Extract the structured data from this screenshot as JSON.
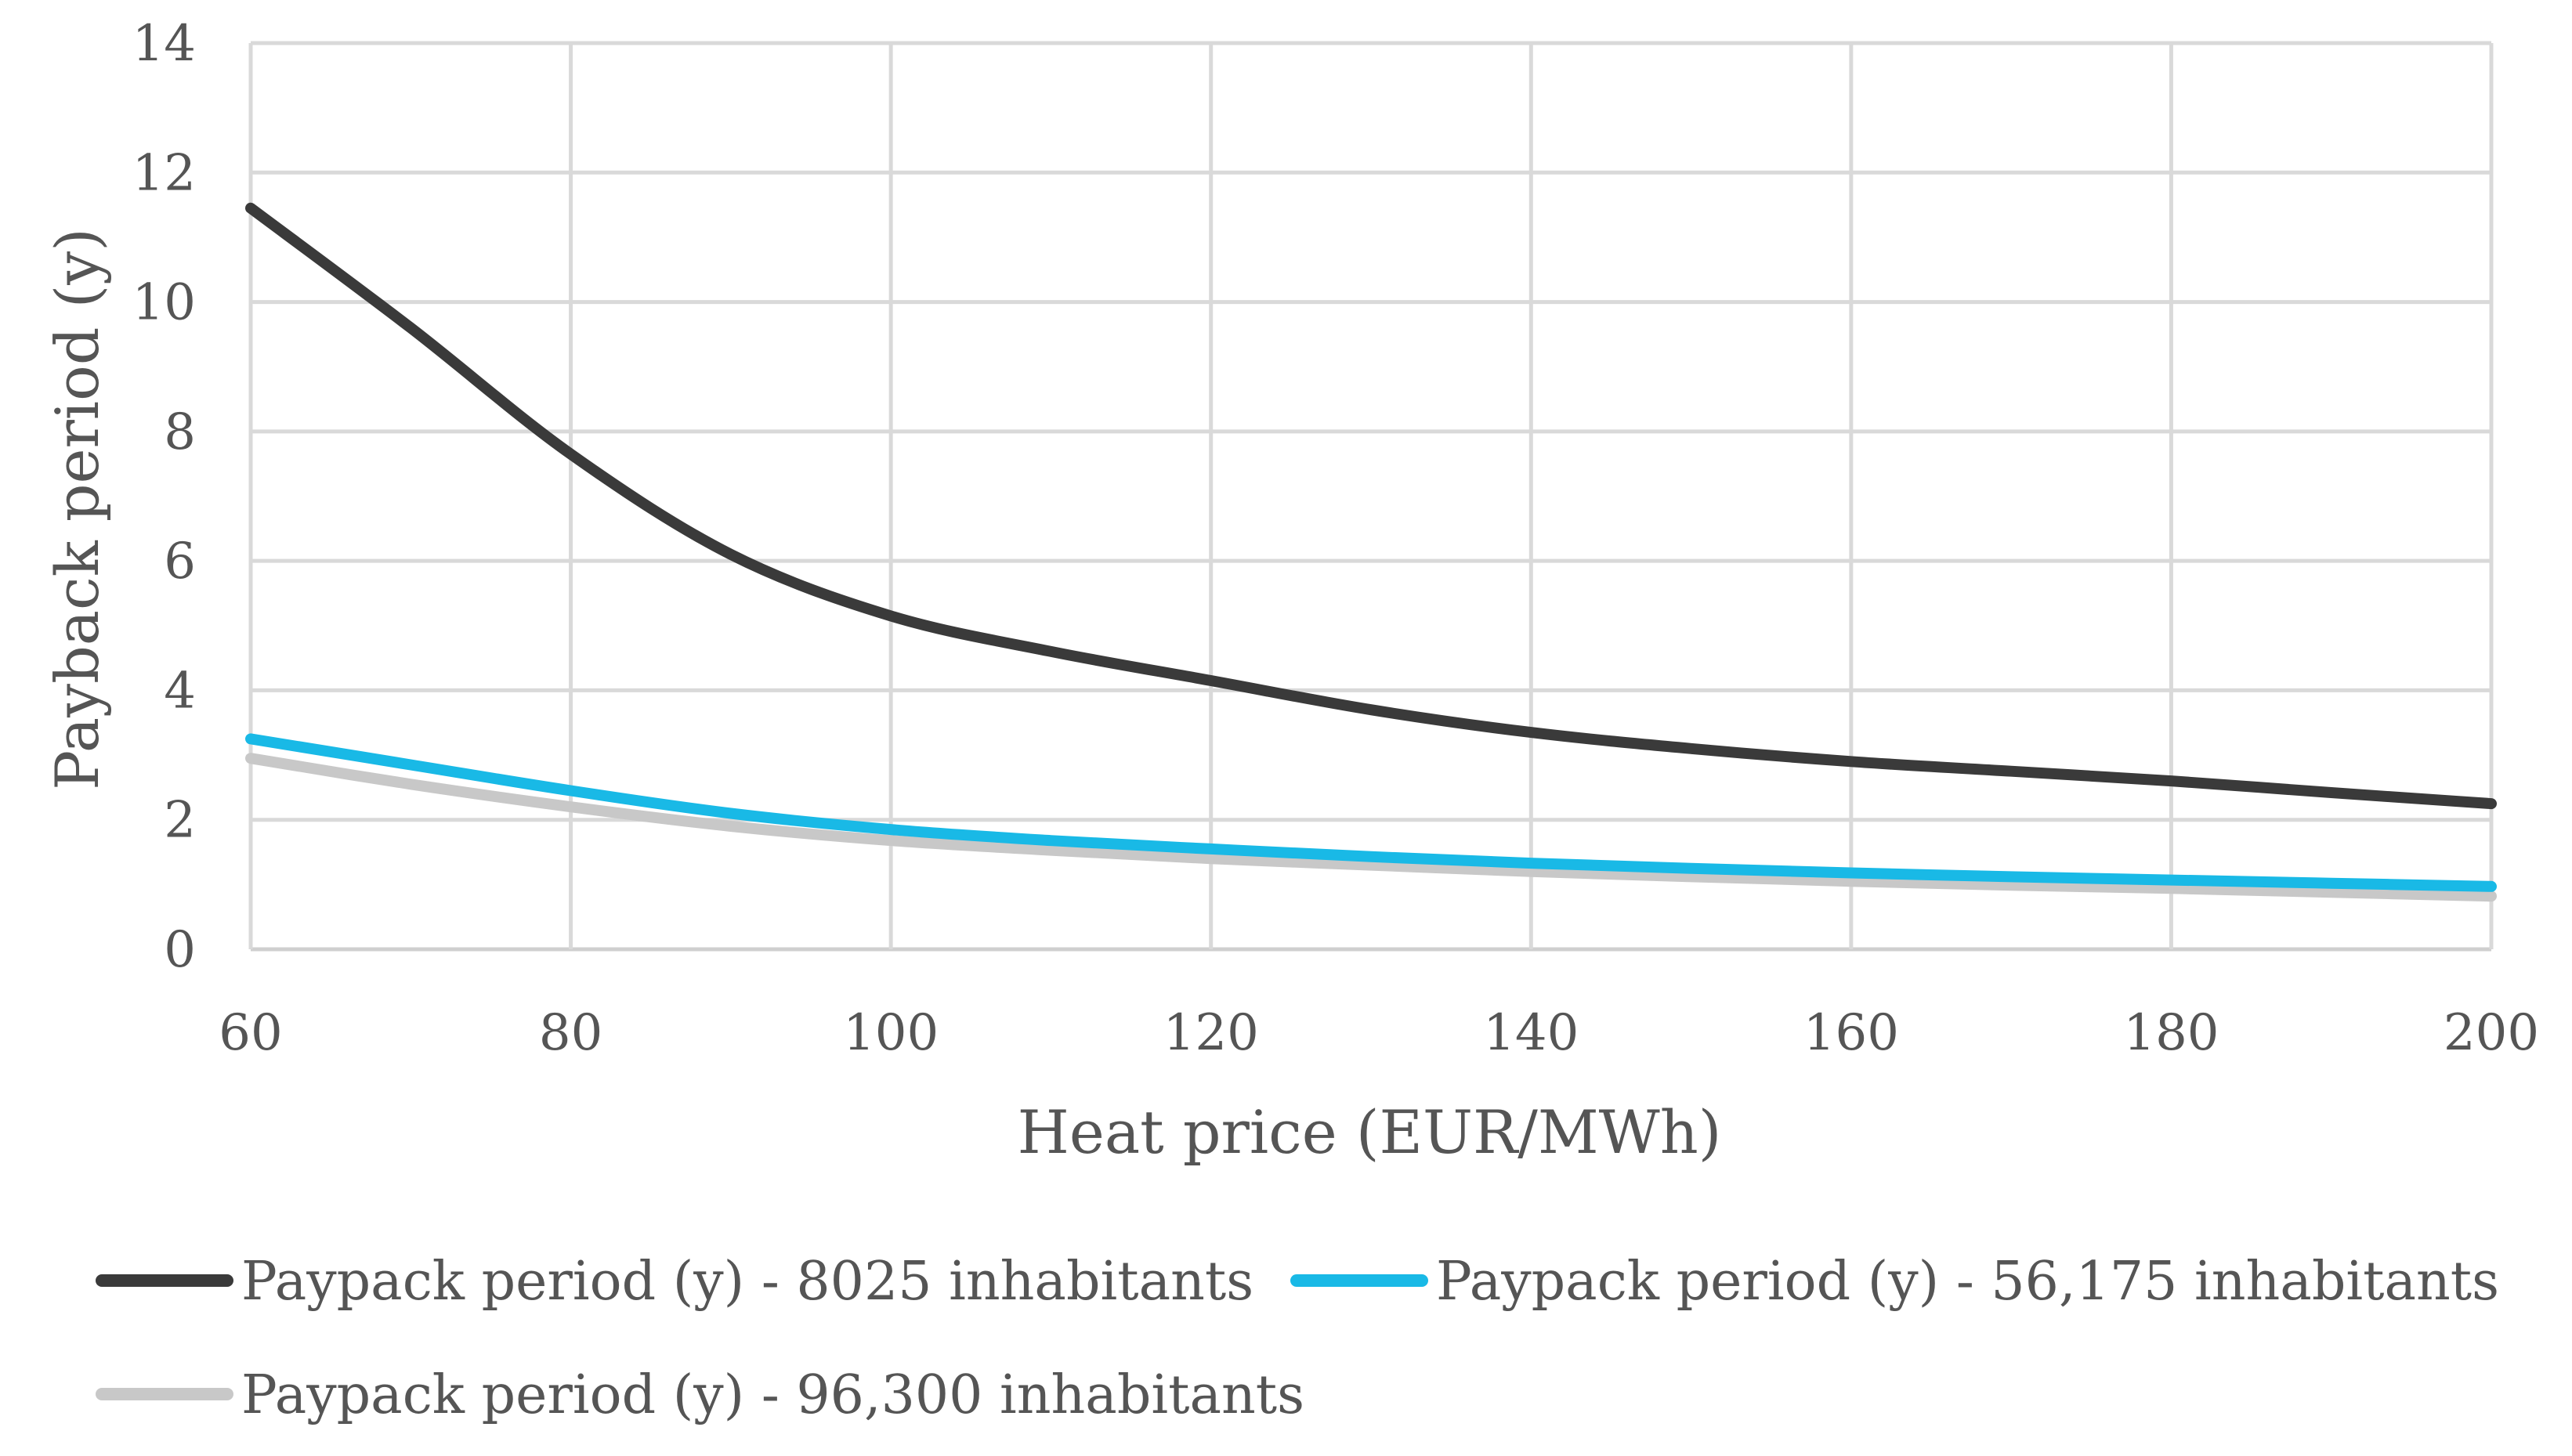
{
  "chart_data": {
    "type": "line",
    "title": "",
    "xlabel": "Heat price (EUR/MWh)",
    "ylabel": "Payback period (y)",
    "xlim": [
      60,
      200
    ],
    "ylim": [
      0,
      14
    ],
    "x_ticks": [
      60,
      80,
      100,
      120,
      140,
      160,
      180,
      200
    ],
    "y_ticks": [
      0,
      2,
      4,
      6,
      8,
      10,
      12,
      14
    ],
    "grid": true,
    "legend_position": "bottom",
    "x": [
      60,
      70,
      80,
      90,
      100,
      110,
      120,
      130,
      140,
      150,
      160,
      170,
      180,
      190,
      200
    ],
    "series": [
      {
        "name": "Paypack period (y) - 8025 inhabitants",
        "color": "#3a3a3a",
        "values": [
          11.45,
          9.6,
          7.65,
          6.1,
          5.15,
          4.6,
          4.15,
          3.7,
          3.35,
          3.1,
          2.9,
          2.75,
          2.6,
          2.42,
          2.25
        ]
      },
      {
        "name": "Paypack period (y) - 56,175 inhabitants",
        "color": "#19b9e6",
        "values": [
          3.25,
          2.85,
          2.45,
          2.1,
          1.85,
          1.68,
          1.55,
          1.43,
          1.33,
          1.25,
          1.18,
          1.12,
          1.07,
          1.02,
          0.97
        ]
      },
      {
        "name": "Paypack period (y) - 96,300 inhabitants",
        "color": "#c8c8c8",
        "values": [
          2.95,
          2.55,
          2.2,
          1.9,
          1.68,
          1.53,
          1.4,
          1.3,
          1.2,
          1.12,
          1.05,
          0.99,
          0.94,
          0.88,
          0.82
        ]
      }
    ]
  }
}
